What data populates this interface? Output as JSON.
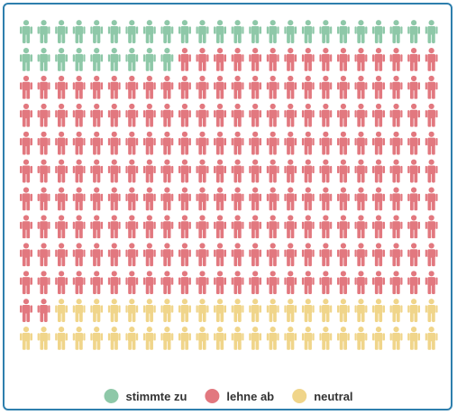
{
  "chart_data": {
    "type": "pictogram",
    "icon": "person-icon",
    "columns": 24,
    "rows": 12,
    "series": [
      {
        "name": "stimmte zu",
        "count": 33,
        "color": "#8ec8a8"
      },
      {
        "name": "lehne ab",
        "count": 209,
        "color": "#e2787f"
      },
      {
        "name": "neutral",
        "count": 46,
        "color": "#f0d58a"
      }
    ],
    "legend_position": "bottom-center"
  }
}
